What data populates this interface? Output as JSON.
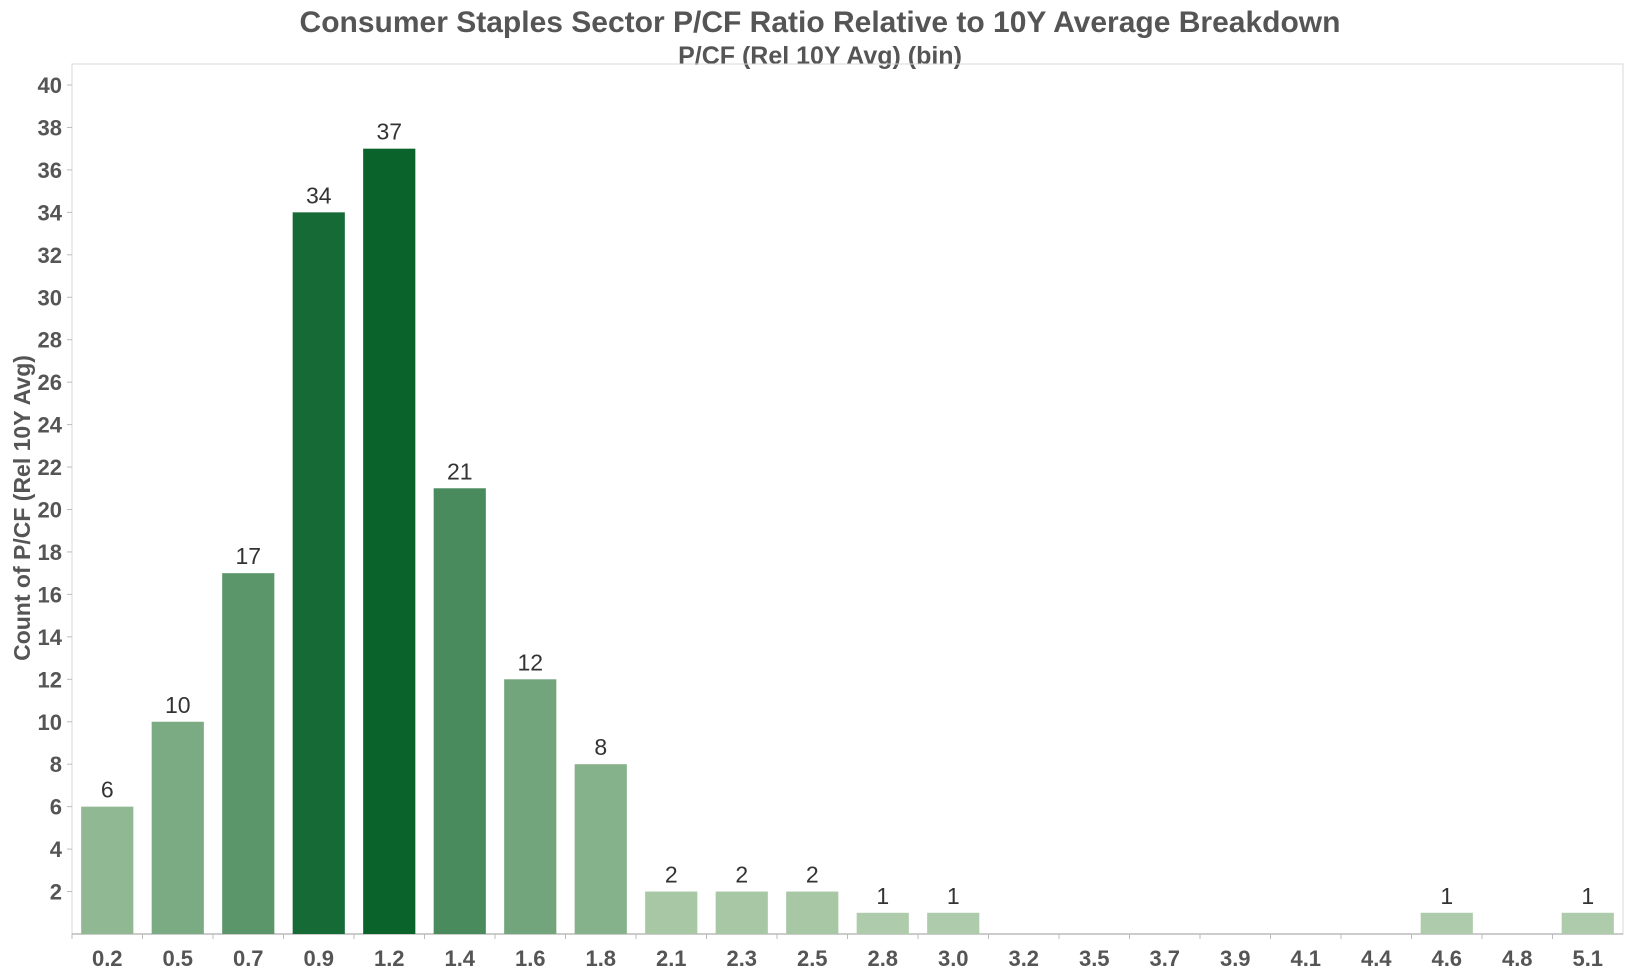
{
  "chart_data": {
    "type": "bar",
    "title": "Consumer Staples Sector P/CF Ratio Relative to 10Y Average Breakdown",
    "subtitle": "P/CF (Rel 10Y Avg) (bin)",
    "xlabel": "",
    "ylabel": "Count of P/CF (Rel 10Y Avg)",
    "categories": [
      "0.2",
      "0.5",
      "0.7",
      "0.9",
      "1.2",
      "1.4",
      "1.6",
      "1.8",
      "2.1",
      "2.3",
      "2.5",
      "2.8",
      "3.0",
      "3.2",
      "3.5",
      "3.7",
      "3.9",
      "4.1",
      "4.4",
      "4.6",
      "4.8",
      "5.1"
    ],
    "values": [
      6,
      10,
      17,
      34,
      37,
      21,
      12,
      8,
      2,
      2,
      2,
      1,
      1,
      0,
      0,
      0,
      0,
      0,
      0,
      1,
      0,
      1
    ],
    "ylim": [
      0,
      40
    ],
    "yticks": [
      2,
      4,
      6,
      8,
      10,
      12,
      14,
      16,
      18,
      20,
      22,
      24,
      26,
      28,
      30,
      32,
      34,
      36,
      38,
      40
    ],
    "grid": false,
    "legend": "none",
    "color_scale": {
      "low": "#b8d2b2",
      "high": "#0b632c"
    }
  }
}
